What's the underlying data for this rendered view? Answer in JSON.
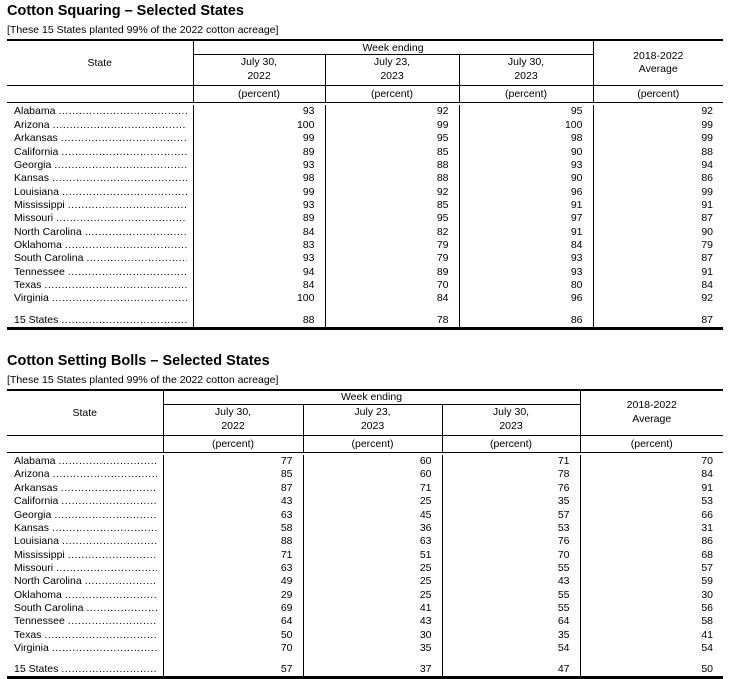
{
  "page": {
    "background": "#ffffff",
    "text_color": "#000000"
  },
  "tables": [
    {
      "title": "Cotton Squaring – Selected States",
      "subtitle": "[These 15 States planted 99% of the 2022 cotton acreage]",
      "header": {
        "state": "State",
        "week_ending": "Week ending",
        "dates": [
          {
            "line1": "July 30,",
            "line2": "2022"
          },
          {
            "line1": "July 23,",
            "line2": "2023"
          },
          {
            "line1": "July 30,",
            "line2": "2023"
          }
        ],
        "average": {
          "line1": "2018-2022",
          "line2": "Average"
        },
        "unit": "(percent)"
      },
      "rows": [
        {
          "state": "Alabama",
          "values": [
            93,
            92,
            95,
            92
          ]
        },
        {
          "state": "Arizona",
          "values": [
            100,
            99,
            100,
            99
          ]
        },
        {
          "state": "Arkansas",
          "values": [
            99,
            95,
            98,
            99
          ]
        },
        {
          "state": "California",
          "values": [
            89,
            85,
            90,
            88
          ]
        },
        {
          "state": "Georgia",
          "values": [
            93,
            88,
            93,
            94
          ]
        },
        {
          "state": "Kansas",
          "values": [
            98,
            88,
            90,
            86
          ]
        },
        {
          "state": "Louisiana",
          "values": [
            99,
            92,
            96,
            99
          ]
        },
        {
          "state": "Mississippi",
          "values": [
            93,
            85,
            91,
            91
          ]
        },
        {
          "state": "Missouri",
          "values": [
            89,
            95,
            97,
            87
          ]
        },
        {
          "state": "North Carolina",
          "values": [
            84,
            82,
            91,
            90
          ]
        },
        {
          "state": "Oklahoma",
          "values": [
            83,
            79,
            84,
            79
          ]
        },
        {
          "state": "South Carolina",
          "values": [
            93,
            79,
            93,
            87
          ]
        },
        {
          "state": "Tennessee",
          "values": [
            94,
            89,
            93,
            91
          ]
        },
        {
          "state": "Texas",
          "values": [
            84,
            70,
            80,
            84
          ]
        },
        {
          "state": "Virginia",
          "values": [
            100,
            84,
            96,
            92
          ]
        }
      ],
      "total": {
        "state": "15 States",
        "values": [
          88,
          78,
          86,
          87
        ]
      }
    },
    {
      "title": "Cotton Setting Bolls – Selected States",
      "subtitle": "[These 15 States planted 99% of the 2022 cotton acreage]",
      "header": {
        "state": "State",
        "week_ending": "Week ending",
        "dates": [
          {
            "line1": "July 30,",
            "line2": "2022"
          },
          {
            "line1": "July 23,",
            "line2": "2023"
          },
          {
            "line1": "July 30,",
            "line2": "2023"
          }
        ],
        "average": {
          "line1": "2018-2022",
          "line2": "Average"
        },
        "unit": "(percent)"
      },
      "rows": [
        {
          "state": "Alabama",
          "values": [
            77,
            60,
            71,
            70
          ]
        },
        {
          "state": "Arizona",
          "values": [
            85,
            60,
            78,
            84
          ]
        },
        {
          "state": "Arkansas",
          "values": [
            87,
            71,
            76,
            91
          ]
        },
        {
          "state": "California",
          "values": [
            43,
            25,
            35,
            53
          ]
        },
        {
          "state": "Georgia",
          "values": [
            63,
            45,
            57,
            66
          ]
        },
        {
          "state": "Kansas",
          "values": [
            58,
            36,
            53,
            31
          ]
        },
        {
          "state": "Louisiana",
          "values": [
            88,
            63,
            76,
            86
          ]
        },
        {
          "state": "Mississippi",
          "values": [
            71,
            51,
            70,
            68
          ]
        },
        {
          "state": "Missouri",
          "values": [
            63,
            25,
            55,
            57
          ]
        },
        {
          "state": "North Carolina",
          "values": [
            49,
            25,
            43,
            59
          ]
        },
        {
          "state": "Oklahoma",
          "values": [
            29,
            25,
            55,
            30
          ]
        },
        {
          "state": "South Carolina",
          "values": [
            69,
            41,
            55,
            56
          ]
        },
        {
          "state": "Tennessee",
          "values": [
            64,
            43,
            64,
            58
          ]
        },
        {
          "state": "Texas",
          "values": [
            50,
            30,
            35,
            41
          ]
        },
        {
          "state": "Virginia",
          "values": [
            70,
            35,
            54,
            54
          ]
        }
      ],
      "total": {
        "state": "15 States",
        "values": [
          57,
          37,
          47,
          50
        ]
      }
    }
  ]
}
